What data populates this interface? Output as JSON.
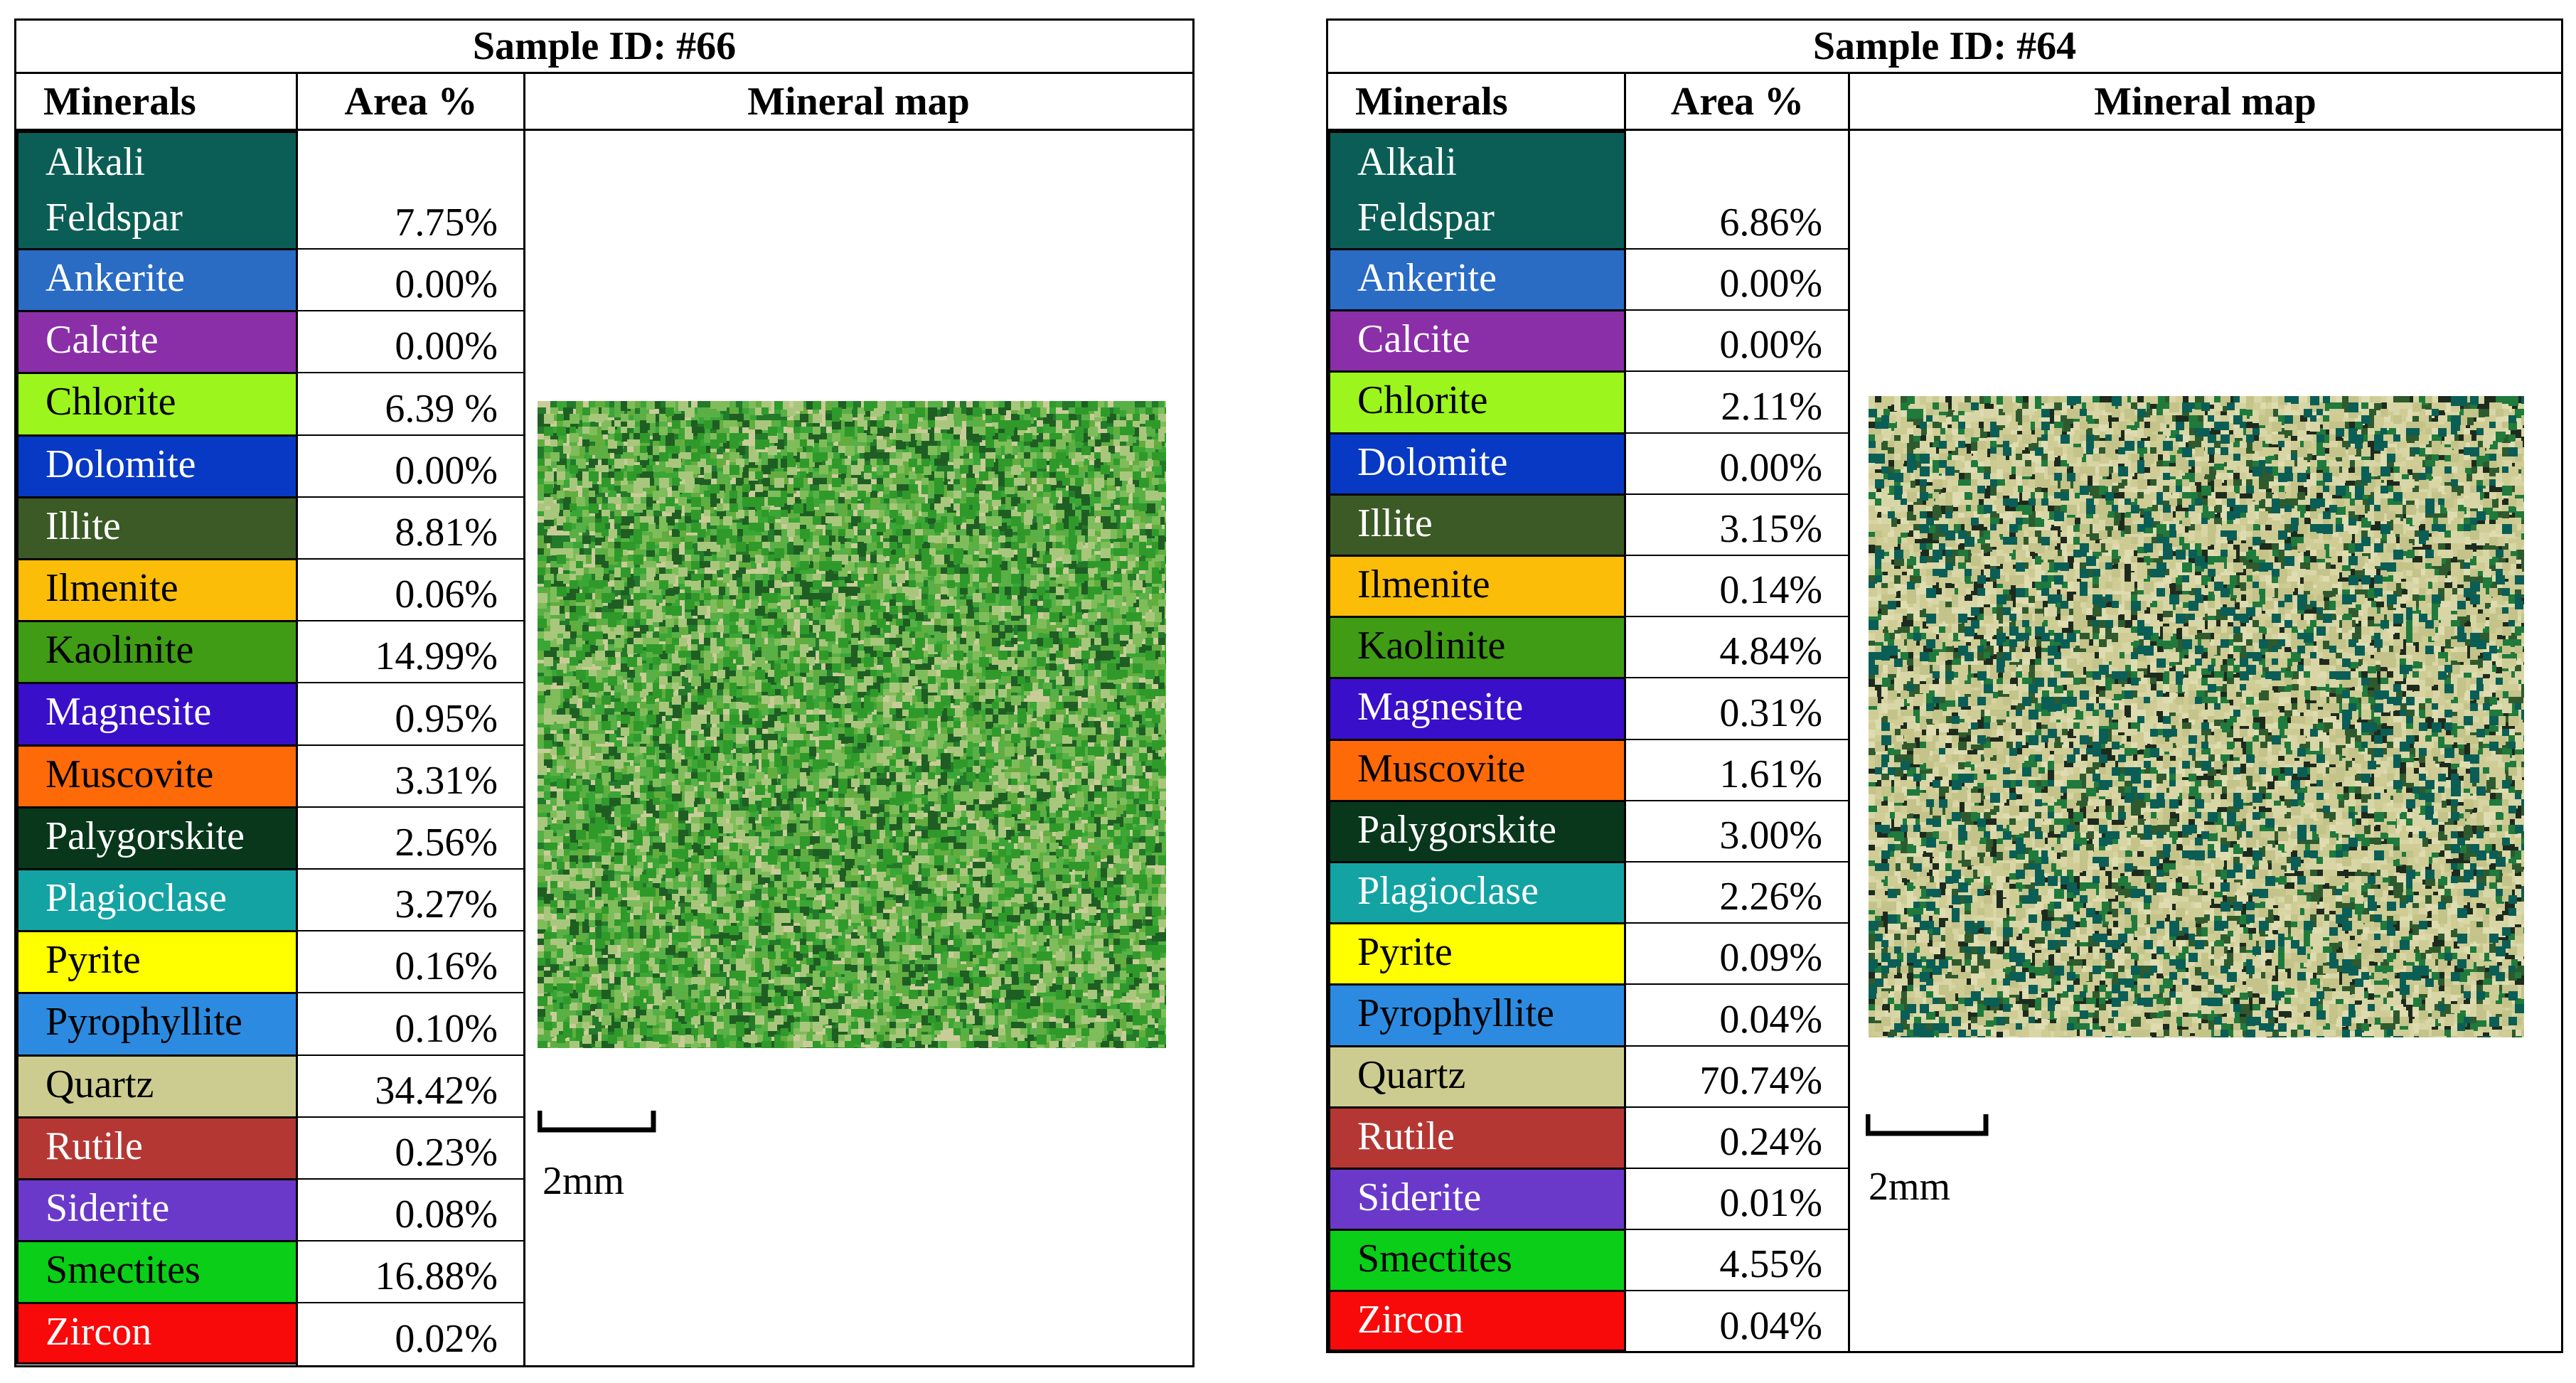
{
  "headers": {
    "minerals": "Minerals",
    "area": "Area %",
    "map": "Mineral map"
  },
  "scale_label": "2mm",
  "minerals": [
    {
      "name": "Alkali Feldspar",
      "color": "#0b5e55",
      "light": false
    },
    {
      "name": "Ankerite",
      "color": "#2a6bc4",
      "light": false
    },
    {
      "name": "Calcite",
      "color": "#8a2fa8",
      "light": false
    },
    {
      "name": "Chlorite",
      "color": "#9cf51c",
      "light": true
    },
    {
      "name": "Dolomite",
      "color": "#0839c4",
      "light": false
    },
    {
      "name": "Illite",
      "color": "#3b5a25",
      "light": false
    },
    {
      "name": "Ilmenite",
      "color": "#fbbd08",
      "light": true
    },
    {
      "name": "Kaolinite",
      "color": "#3f9c14",
      "light": true
    },
    {
      "name": "Magnesite",
      "color": "#3a0fc9",
      "light": false
    },
    {
      "name": "Muscovite",
      "color": "#ff6a09",
      "light": true
    },
    {
      "name": "Palygorskite",
      "color": "#08371c",
      "light": false
    },
    {
      "name": "Plagioclase",
      "color": "#13a3a3",
      "light": false
    },
    {
      "name": "Pyrite",
      "color": "#ffff00",
      "light": true
    },
    {
      "name": "Pyrophyllite",
      "color": "#2c8be0",
      "light": true
    },
    {
      "name": "Quartz",
      "color": "#cdcc90",
      "light": true
    },
    {
      "name": "Rutile",
      "color": "#b53734",
      "light": false
    },
    {
      "name": "Siderite",
      "color": "#6a39c9",
      "light": false
    },
    {
      "name": "Smectites",
      "color": "#0ace18",
      "light": true
    },
    {
      "name": "Zircon",
      "color": "#f90a0a",
      "light": false
    }
  ],
  "samples": [
    {
      "title": "Sample ID: #66",
      "areas": [
        "7.75%",
        "0.00%",
        "0.00%",
        "6.39 %",
        "0.00%",
        "8.81%",
        "0.06%",
        "14.99%",
        "0.95%",
        "3.31%",
        "2.56%",
        "3.27%",
        "0.16%",
        "0.10%",
        "34.42%",
        "0.23%",
        "0.08%",
        "16.88%",
        "0.02%"
      ],
      "map_palette": [
        "#2f9a2a",
        "#3aa635",
        "#58b047",
        "#7fbd5a",
        "#a9c77c",
        "#c9cc98",
        "#227a2a",
        "#63ad3f",
        "#1f5e23"
      ]
    },
    {
      "title": "Sample ID: #64",
      "areas": [
        "6.86%",
        "0.00%",
        "0.00%",
        "2.11%",
        "0.00%",
        "3.15%",
        "0.14%",
        "4.84%",
        "0.31%",
        "1.61%",
        "3.00%",
        "2.26%",
        "0.09%",
        "0.04%",
        "70.74%",
        "0.24%",
        "0.01%",
        "4.55%",
        "0.04%"
      ],
      "map_palette": [
        "#d6d4a2",
        "#cfcc95",
        "#dedcb0",
        "#c4c38a",
        "#1d2a1e",
        "#0b5e55",
        "#2e5a2e",
        "#1f7a3c",
        "#d8d6a6",
        "#cccb92"
      ]
    }
  ]
}
